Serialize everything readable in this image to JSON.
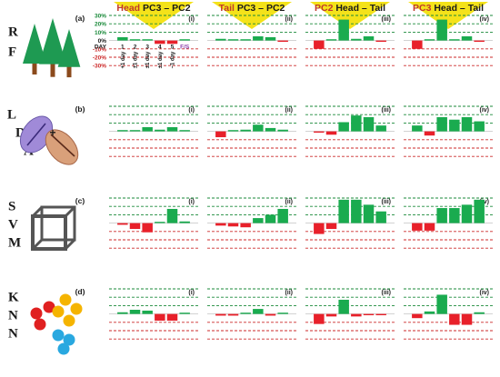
{
  "figure": {
    "columns": [
      {
        "id": "head-pc3-pc2",
        "part1": "Head",
        "part1_color": "#c0392b",
        "part2": " PC3 – PC2",
        "part2_color": "#1a1a1a"
      },
      {
        "id": "tail-pc3-pc2",
        "part1": "Tail",
        "part1_color": "#c0392b",
        "part2": " PC3 – PC2",
        "part2_color": "#1a1a1a"
      },
      {
        "id": "pc2-head-tail",
        "part1": "PC2",
        "part1_color": "#c0392b",
        "part2": " Head – Tail",
        "part2_color": "#1a1a1a"
      },
      {
        "id": "pc3-head-tail",
        "part1": "PC3",
        "part1_color": "#c0392b",
        "part2": " Head – Tail",
        "part2_color": "#1a1a1a"
      }
    ],
    "panel_labels": [
      "(i)",
      "(ii)",
      "(iii)",
      "(iv)"
    ],
    "rows": [
      {
        "id": "rf",
        "tag": "(a)",
        "letters": [
          "R",
          "F"
        ],
        "icon": "forest-trees-icon"
      },
      {
        "id": "lda",
        "tag": "(b)",
        "letters": [
          "L",
          "D",
          "A"
        ],
        "icon": "lda-ellipses-icon"
      },
      {
        "id": "svm",
        "tag": "(c)",
        "letters": [
          "S",
          "V",
          "M"
        ],
        "icon": "svm-cube-icon"
      },
      {
        "id": "knn",
        "tag": "(d)",
        "letters": [
          "K",
          "N",
          "N"
        ],
        "icon": "knn-dots-icon"
      }
    ],
    "legend": {
      "y_ticks": [
        "30%",
        "20%",
        "10%",
        "0%",
        "-10%",
        "-20%",
        "-30%"
      ],
      "day_label": "DAY",
      "days": [
        "1",
        "2",
        "3",
        "4",
        "5"
      ],
      "fs_label": "F/S",
      "offsets": [
        "+1 day",
        "±1 day",
        "±1 day",
        "±1 day",
        "−1 day"
      ]
    },
    "colors": {
      "positive": "#1aab4f",
      "negative": "#e8202a",
      "grid_positive": "#1a8a3a",
      "grid_negative": "#cc2a2a",
      "header_highlight": "#f4e21a",
      "fs_label": "#8e44ad",
      "tree_foliage": "#1e9a52",
      "tree_trunk": "#8b4a1c",
      "lda_left": "#a08ad8",
      "lda_right": "#d9a07a",
      "knn_red": "#e02020",
      "knn_yellow": "#f5b400",
      "knn_blue": "#29a8e0"
    }
  },
  "chart_data": [
    {
      "type": "bar",
      "row": "RF",
      "column": "Head PC3 – PC2",
      "panel": "(i)",
      "categories": [
        "1",
        "2",
        "3",
        "4",
        "5",
        "F/S"
      ],
      "values": [
        4,
        0,
        0,
        -4,
        -4,
        0
      ],
      "ylim": [
        -30,
        30
      ],
      "y_unit": "%"
    },
    {
      "type": "bar",
      "row": "RF",
      "column": "Tail PC3 – PC2",
      "panel": "(ii)",
      "categories": [
        "1",
        "2",
        "3",
        "4",
        "5",
        "F/S"
      ],
      "values": [
        2,
        1,
        0,
        5,
        4,
        -1
      ],
      "ylim": [
        -30,
        30
      ],
      "y_unit": "%"
    },
    {
      "type": "bar",
      "row": "RF",
      "column": "PC2 Head – Tail",
      "panel": "(iii)",
      "categories": [
        "1",
        "2",
        "3",
        "4",
        "5",
        "F/S"
      ],
      "values": [
        -10,
        1,
        25,
        2,
        5,
        -1
      ],
      "ylim": [
        -30,
        30
      ],
      "y_unit": "%"
    },
    {
      "type": "bar",
      "row": "RF",
      "column": "PC3 Head – Tail",
      "panel": "(iv)",
      "categories": [
        "1",
        "2",
        "3",
        "4",
        "5",
        "F/S"
      ],
      "values": [
        -10,
        1,
        25,
        1,
        5,
        -1
      ],
      "ylim": [
        -30,
        30
      ],
      "y_unit": "%"
    },
    {
      "type": "bar",
      "row": "LDA",
      "column": "Head PC3 – PC2",
      "panel": "(i)",
      "categories": [
        "1",
        "2",
        "3",
        "4",
        "5",
        "F/S"
      ],
      "values": [
        0,
        1,
        5,
        2,
        5,
        1
      ],
      "ylim": [
        -30,
        30
      ],
      "y_unit": "%"
    },
    {
      "type": "bar",
      "row": "LDA",
      "column": "Tail PC3 – PC2",
      "panel": "(ii)",
      "categories": [
        "1",
        "2",
        "3",
        "4",
        "5",
        "F/S"
      ],
      "values": [
        -7,
        0,
        2,
        8,
        4,
        2
      ],
      "ylim": [
        -30,
        30
      ],
      "y_unit": "%"
    },
    {
      "type": "bar",
      "row": "LDA",
      "column": "PC2 Head – Tail",
      "panel": "(iii)",
      "categories": [
        "1",
        "2",
        "3",
        "4",
        "5",
        "F/S"
      ],
      "values": [
        -1,
        -4,
        11,
        19,
        17,
        7
      ],
      "ylim": [
        -30,
        30
      ],
      "y_unit": "%"
    },
    {
      "type": "bar",
      "row": "LDA",
      "column": "PC3 Head – Tail",
      "panel": "(iv)",
      "categories": [
        "1",
        "2",
        "3",
        "4",
        "5",
        "F/S"
      ],
      "values": [
        7,
        -5,
        17,
        14,
        17,
        12
      ],
      "ylim": [
        -30,
        30
      ],
      "y_unit": "%"
    },
    {
      "type": "bar",
      "row": "SVM",
      "column": "Head PC3 – PC2",
      "panel": "(i)",
      "categories": [
        "1",
        "2",
        "3",
        "4",
        "5",
        "F/S"
      ],
      "values": [
        -2,
        -7,
        -11,
        1,
        17,
        2
      ],
      "ylim": [
        -30,
        30
      ],
      "y_unit": "%"
    },
    {
      "type": "bar",
      "row": "SVM",
      "column": "Tail PC3 – PC2",
      "panel": "(ii)",
      "categories": [
        "1",
        "2",
        "3",
        "4",
        "5",
        "F/S"
      ],
      "values": [
        -3,
        -4,
        -5,
        6,
        10,
        17
      ],
      "ylim": [
        -30,
        30
      ],
      "y_unit": "%"
    },
    {
      "type": "bar",
      "row": "SVM",
      "column": "PC2 Head – Tail",
      "panel": "(iii)",
      "categories": [
        "1",
        "2",
        "3",
        "4",
        "5",
        "F/S"
      ],
      "values": [
        -13,
        -7,
        28,
        28,
        22,
        14
      ],
      "ylim": [
        -30,
        30
      ],
      "y_unit": "%"
    },
    {
      "type": "bar",
      "row": "SVM",
      "column": "PC3 Head – Tail",
      "panel": "(iv)",
      "categories": [
        "1",
        "2",
        "3",
        "4",
        "5",
        "F/S"
      ],
      "values": [
        -9,
        -9,
        18,
        18,
        22,
        28
      ],
      "ylim": [
        -30,
        30
      ],
      "y_unit": "%"
    },
    {
      "type": "bar",
      "row": "KNN",
      "column": "Head PC3 – PC2",
      "panel": "(i)",
      "categories": [
        "1",
        "2",
        "3",
        "4",
        "5",
        "F/S"
      ],
      "values": [
        2,
        5,
        4,
        -8,
        -8,
        0
      ],
      "ylim": [
        -30,
        30
      ],
      "y_unit": "%"
    },
    {
      "type": "bar",
      "row": "KNN",
      "column": "Tail PC3 – PC2",
      "panel": "(ii)",
      "categories": [
        "1",
        "2",
        "3",
        "4",
        "5",
        "F/S"
      ],
      "values": [
        -2,
        -2,
        0,
        6,
        -2,
        0
      ],
      "ylim": [
        -30,
        30
      ],
      "y_unit": "%"
    },
    {
      "type": "bar",
      "row": "KNN",
      "column": "PC2 Head – Tail",
      "panel": "(iii)",
      "categories": [
        "1",
        "2",
        "3",
        "4",
        "5",
        "F/S"
      ],
      "values": [
        -12,
        -3,
        17,
        -3,
        -1,
        -1
      ],
      "ylim": [
        -30,
        30
      ],
      "y_unit": "%"
    },
    {
      "type": "bar",
      "row": "KNN",
      "column": "PC3 Head – Tail",
      "panel": "(iv)",
      "categories": [
        "1",
        "2",
        "3",
        "4",
        "5",
        "F/S"
      ],
      "values": [
        -5,
        3,
        23,
        -13,
        -13,
        2
      ],
      "ylim": [
        -30,
        30
      ],
      "y_unit": "%"
    }
  ]
}
